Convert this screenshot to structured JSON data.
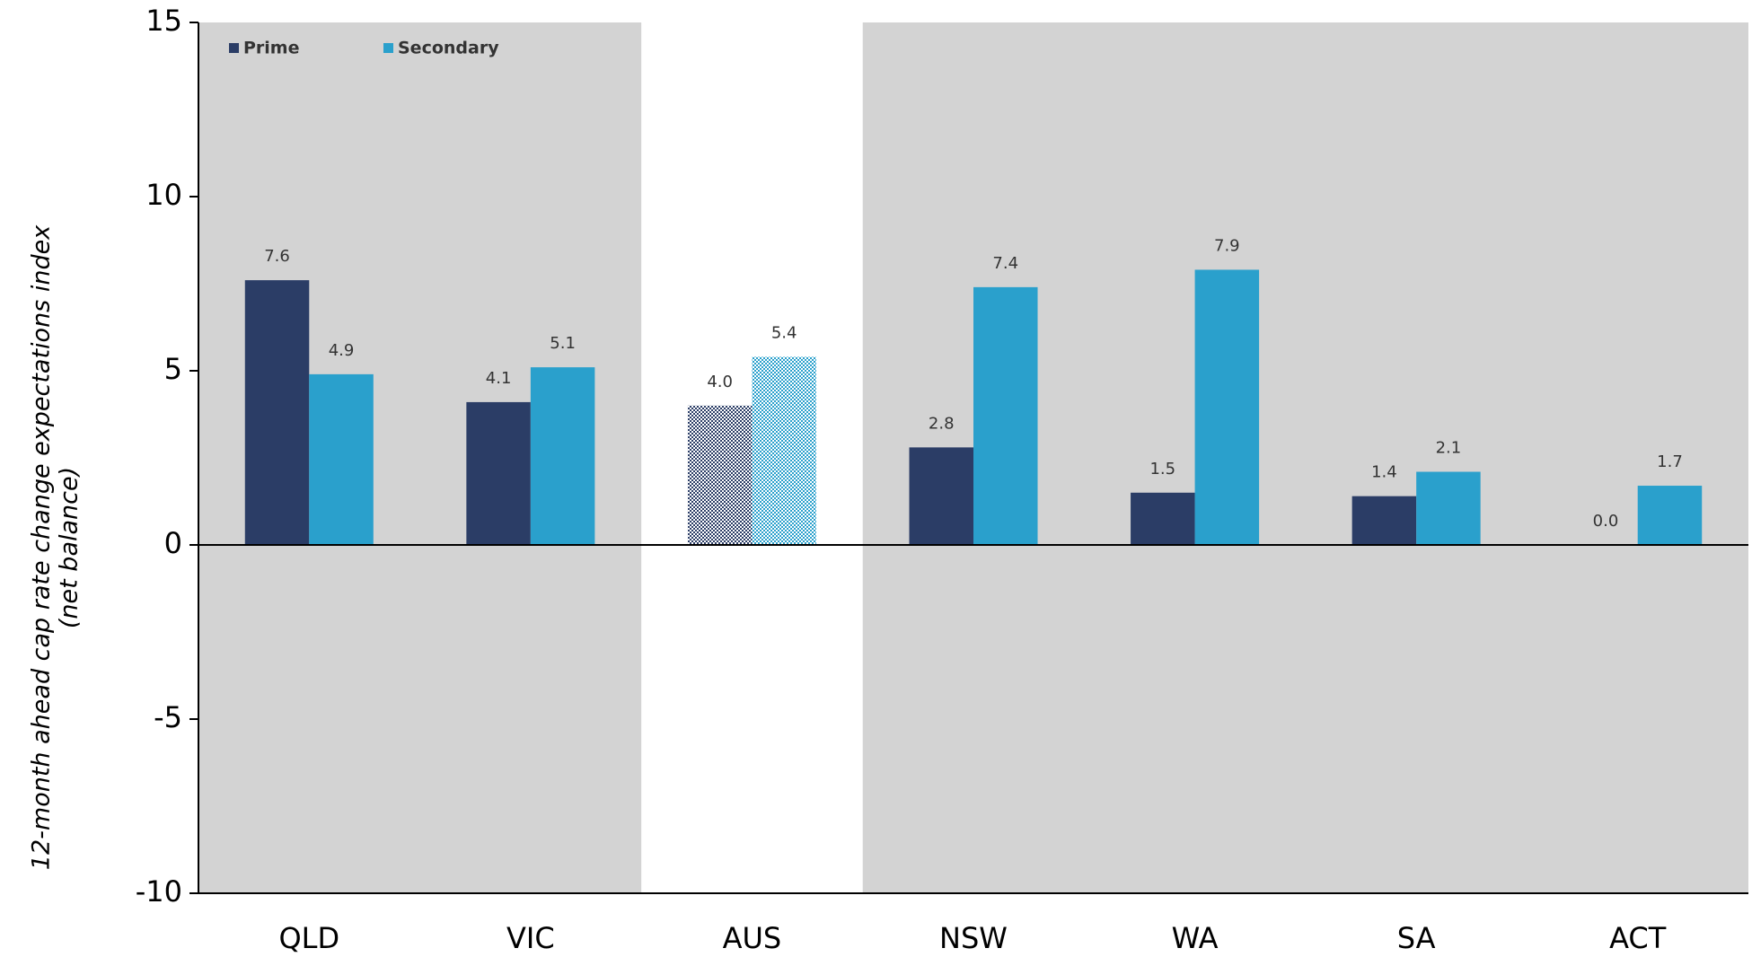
{
  "chart_data": {
    "type": "bar",
    "y_label": [
      "12-month ahead cap rate change expectations index",
      "(net balance)"
    ],
    "categories": [
      "QLD",
      "VIC",
      "AUS",
      "NSW",
      "WA",
      "SA",
      "ACT"
    ],
    "series": [
      {
        "name": "Prime",
        "color": "#2b3d66",
        "values": [
          7.6,
          4.1,
          4.0,
          2.8,
          1.5,
          1.4,
          0.0
        ],
        "value_labels": [
          "7.6",
          "4.1",
          "4.0",
          "2.8",
          "1.5",
          "1.4",
          "0.0"
        ]
      },
      {
        "name": "Secondary",
        "color": "#2aa0cc",
        "values": [
          4.9,
          5.1,
          5.4,
          7.4,
          7.9,
          2.1,
          1.7
        ],
        "value_labels": [
          "4.9",
          "5.1",
          "5.4",
          "7.4",
          "7.9",
          "2.1",
          "1.7"
        ]
      }
    ],
    "ylim": [
      -10,
      15
    ],
    "yticks": [
      -10,
      -5,
      0,
      5,
      10,
      15
    ],
    "plot_background": "#d3d3d3",
    "highlight_index": 2,
    "highlight_background": "#ffffff",
    "legend": "upper-left",
    "grid": false
  }
}
